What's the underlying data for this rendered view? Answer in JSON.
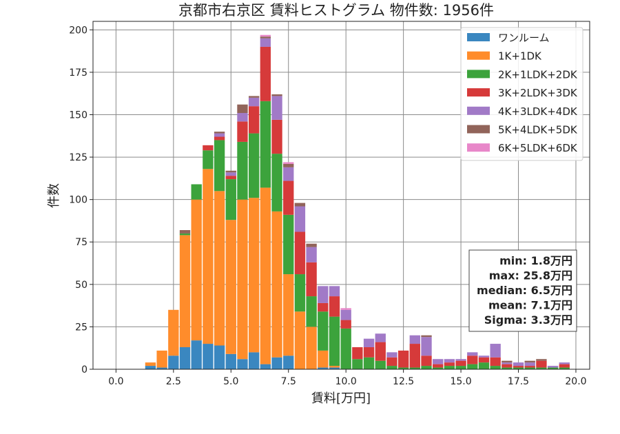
{
  "chart_data": {
    "type": "bar",
    "stacked": true,
    "title": "京都市右京区 賃料ヒストグラム 物件数: 1956件",
    "xlabel": "賃料[万円]",
    "ylabel": "件数",
    "xlim": [
      -1,
      20.6
    ],
    "ylim": [
      0,
      205
    ],
    "xticks": [
      0.0,
      2.5,
      5.0,
      7.5,
      10.0,
      12.5,
      15.0,
      17.5,
      20.0
    ],
    "xtick_labels": [
      "0.0",
      "2.5",
      "5.0",
      "7.5",
      "10.0",
      "12.5",
      "15.0",
      "17.5",
      "20.0"
    ],
    "yticks": [
      0,
      25,
      50,
      75,
      100,
      125,
      150,
      175,
      200
    ],
    "ytick_labels": [
      "0",
      "25",
      "50",
      "75",
      "100",
      "125",
      "150",
      "175",
      "200"
    ],
    "grid": true,
    "legend_position": "top-right",
    "bin_width": 0.5,
    "bin_centers": [
      1.5,
      2.0,
      2.5,
      3.0,
      3.5,
      4.0,
      4.5,
      5.0,
      5.5,
      6.0,
      6.5,
      7.0,
      7.5,
      8.0,
      8.5,
      9.0,
      9.5,
      10.0,
      10.5,
      11.0,
      11.5,
      12.0,
      12.5,
      13.0,
      13.5,
      14.0,
      14.5,
      15.0,
      15.5,
      16.0,
      16.5,
      17.0,
      17.5,
      18.0,
      18.5,
      19.0,
      19.5
    ],
    "series": [
      {
        "name": "ワンルーム",
        "color": "#3a87c0",
        "values": [
          2,
          1,
          8,
          13,
          17,
          15,
          14,
          9,
          6,
          10,
          3,
          7,
          8,
          0,
          0,
          1,
          1,
          0,
          0,
          0,
          0,
          0,
          0,
          0,
          0,
          0,
          0,
          0,
          0,
          0,
          0,
          0,
          0,
          0,
          0,
          0,
          0
        ]
      },
      {
        "name": "1K+1DK",
        "color": "#ff8c2b",
        "values": [
          2,
          10,
          27,
          66,
          83,
          103,
          91,
          79,
          94,
          91,
          104,
          86,
          48,
          34,
          25,
          10,
          1,
          0,
          0,
          0,
          0,
          0,
          0,
          0,
          0,
          0,
          0,
          0,
          0,
          0,
          0,
          0,
          0,
          0,
          0,
          0,
          0
        ]
      },
      {
        "name": "2K+1LDK+2DK",
        "color": "#3ca33c",
        "values": [
          0,
          0,
          0,
          1,
          9,
          11,
          30,
          24,
          34,
          38,
          51,
          34,
          35,
          22,
          18,
          23,
          29,
          24,
          6,
          7,
          5,
          2,
          1,
          1,
          2,
          1,
          2,
          2,
          3,
          4,
          2,
          1,
          1,
          1,
          1,
          1,
          1
        ]
      },
      {
        "name": "3K+2LDK+3DK",
        "color": "#d63a3a",
        "values": [
          0,
          0,
          0,
          0,
          0,
          3,
          2,
          2,
          12,
          16,
          32,
          20,
          20,
          25,
          20,
          5,
          12,
          5,
          7,
          6,
          11,
          5,
          10,
          14,
          6,
          2,
          2,
          3,
          5,
          3,
          5,
          2,
          1,
          1,
          4,
          0,
          2
        ]
      },
      {
        "name": "4K+3LDK+4DK",
        "color": "#a17ac7",
        "values": [
          0,
          0,
          0,
          0,
          0,
          0,
          2,
          2,
          5,
          5,
          5,
          14,
          8,
          15,
          9,
          10,
          6,
          6,
          0,
          5,
          5,
          3,
          0,
          5,
          11,
          3,
          2,
          1,
          2,
          1,
          8,
          1,
          2,
          2,
          0,
          1,
          1
        ]
      },
      {
        "name": "5K+4LDK+5DK",
        "color": "#91645a",
        "values": [
          0,
          0,
          0,
          2,
          0,
          0,
          1,
          1,
          5,
          1,
          1,
          1,
          2,
          2,
          2,
          0,
          0,
          0,
          0,
          0,
          0,
          0,
          0,
          0,
          1,
          0,
          0,
          0,
          0,
          0,
          0,
          1,
          0,
          1,
          1,
          0,
          0
        ]
      },
      {
        "name": "6K+5LDK+6DK",
        "color": "#e887c9",
        "values": [
          0,
          0,
          0,
          0,
          0,
          0,
          0,
          0,
          0,
          0,
          1,
          0,
          1,
          0,
          0,
          0,
          0,
          1,
          0,
          0,
          0,
          0,
          0,
          0,
          0,
          0,
          0,
          0,
          0,
          0,
          0,
          0,
          0,
          0,
          0,
          0,
          0
        ]
      }
    ],
    "stats_box": [
      "min: 1.8万円",
      "max: 25.8万円",
      "median: 6.5万円",
      "mean: 7.1万円",
      "Sigma: 3.3万円"
    ]
  }
}
